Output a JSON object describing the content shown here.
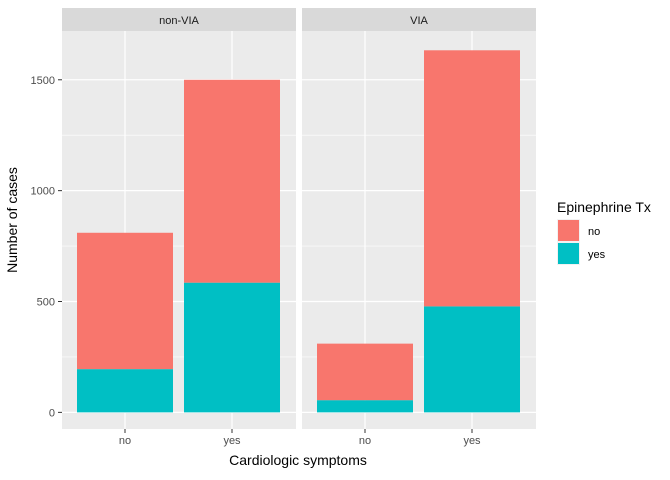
{
  "chart_data": {
    "type": "bar",
    "stacked": true,
    "xlabel": "Cardiologic symptoms",
    "ylabel": "Number of cases",
    "ylim": [
      -75,
      1720
    ],
    "yticks": [
      0,
      500,
      1000,
      1500
    ],
    "ytick_labels": [
      "0",
      "500",
      "1000",
      "1500"
    ],
    "grid": true,
    "legend": {
      "title": "Epinephrine Tx",
      "position": "right",
      "entries": [
        "no",
        "yes"
      ]
    },
    "colors": {
      "no": "#F8766D",
      "yes": "#00BFC4"
    },
    "categories": [
      "no",
      "yes"
    ],
    "panels": [
      {
        "strip": "non-VIA",
        "series": [
          {
            "name": "yes",
            "values": [
              195,
              585
            ]
          },
          {
            "name": "no",
            "values": [
              615,
              915
            ]
          }
        ]
      },
      {
        "strip": "VIA",
        "series": [
          {
            "name": "yes",
            "values": [
              55,
              478
            ]
          },
          {
            "name": "no",
            "values": [
              255,
              1155
            ]
          }
        ]
      }
    ]
  }
}
